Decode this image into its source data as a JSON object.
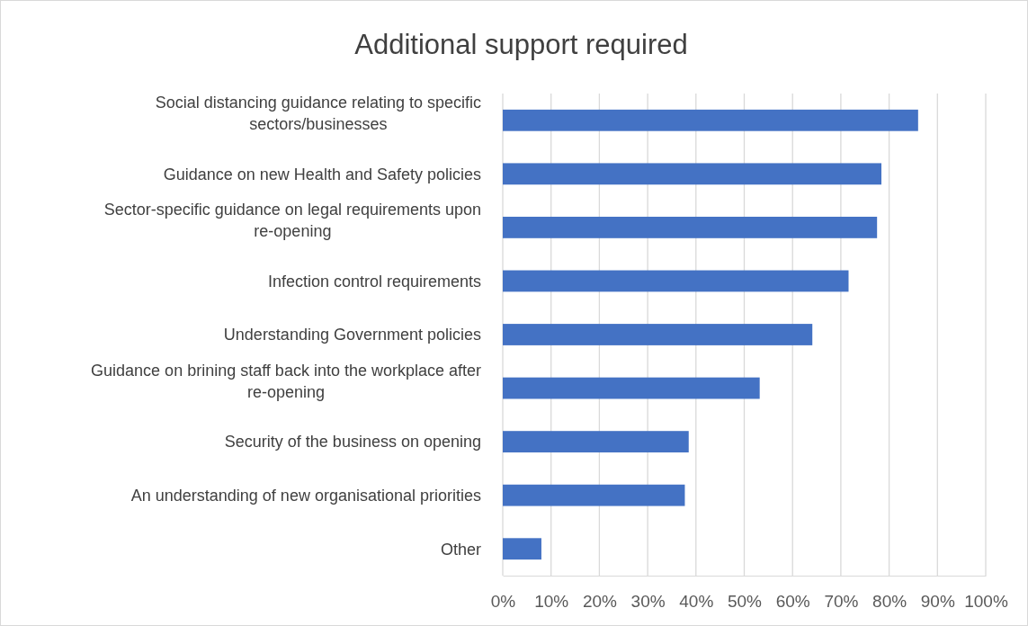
{
  "chart_data": {
    "type": "bar",
    "orientation": "horizontal",
    "title": "Additional support required",
    "categories": [
      "Social distancing guidance relating to specific sectors/businesses",
      "Guidance on new Health and Safety policies",
      "Sector-specific guidance on legal requirements upon re-opening",
      "Infection control requirements",
      "Understanding Government policies",
      "Guidance on brining staff back into the workplace after re-opening",
      "Security of the business on opening",
      "An understanding of new organisational priorities",
      "Other"
    ],
    "values": [
      86,
      78.4,
      77.5,
      71.6,
      64.1,
      53.2,
      38.5,
      37.7,
      8.0
    ],
    "color": "#4472c4",
    "xlim": [
      0,
      100
    ],
    "xticks": [
      {
        "value": 0,
        "label": "0%"
      },
      {
        "value": 10,
        "label": "10%"
      },
      {
        "value": 20,
        "label": "20%"
      },
      {
        "value": 30,
        "label": "30%"
      },
      {
        "value": 40,
        "label": "40%"
      },
      {
        "value": 50,
        "label": "50%"
      },
      {
        "value": 60,
        "label": "60%"
      },
      {
        "value": 70,
        "label": "70%"
      },
      {
        "value": 80,
        "label": "80%"
      },
      {
        "value": 90,
        "label": "90%"
      },
      {
        "value": 100,
        "label": "100%"
      }
    ],
    "grid": "x"
  }
}
